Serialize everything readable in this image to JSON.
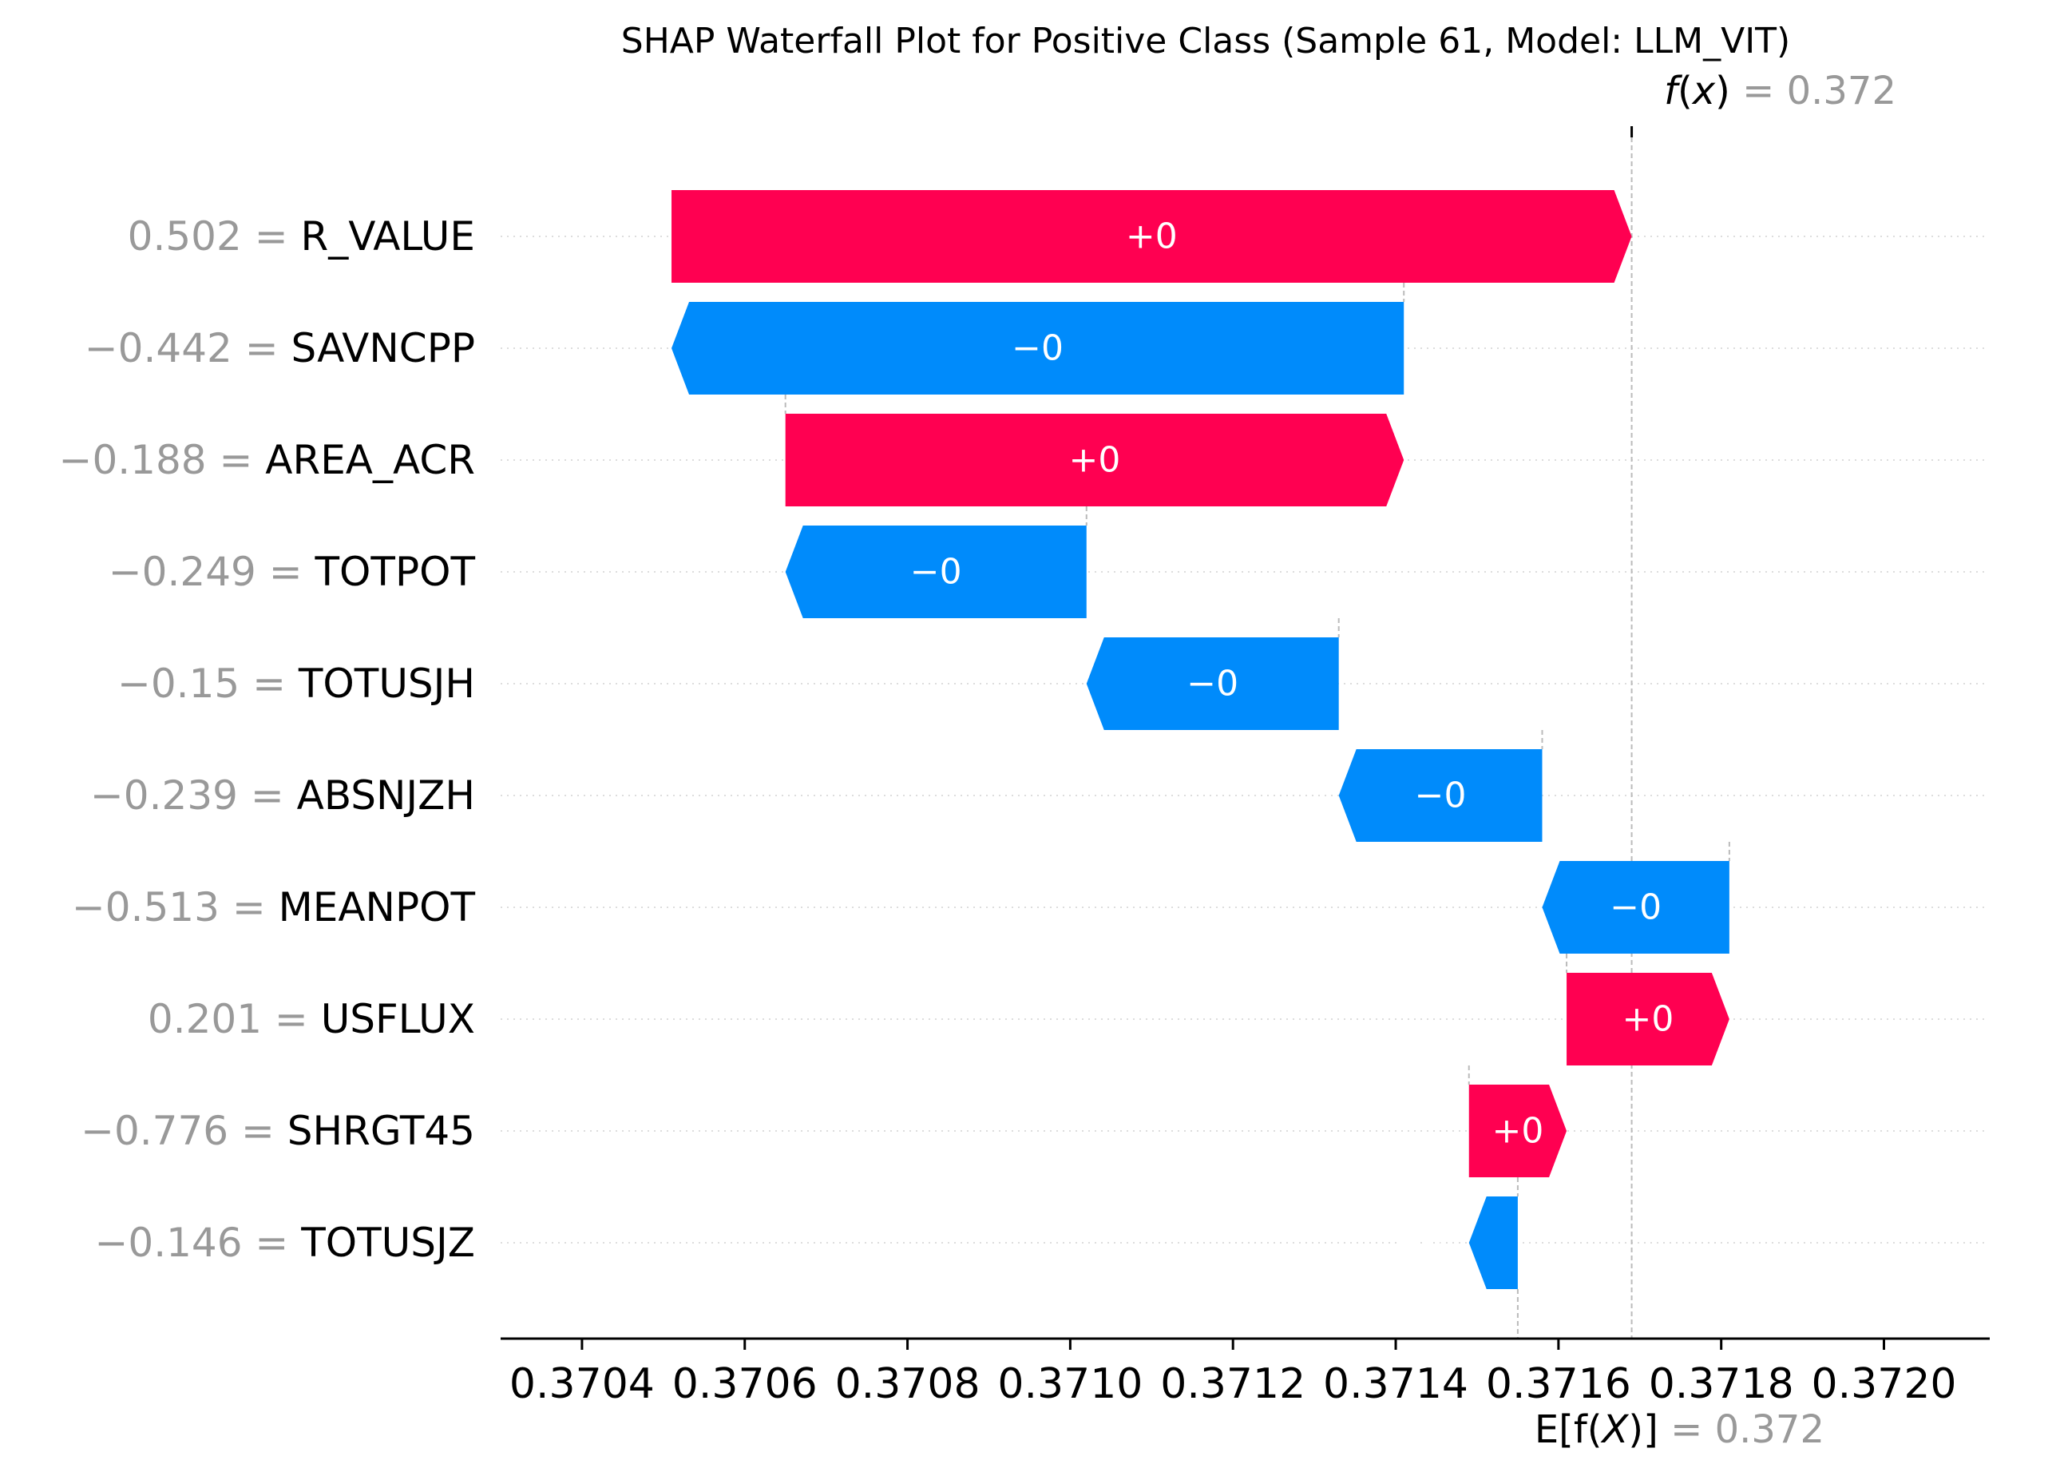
{
  "chart_data": {
    "type": "waterfall",
    "title": "SHAP Waterfall Plot for Positive Class (Sample 61, Model: LLM_VIT)",
    "fx_label_fn": "f",
    "fx_label_arg": "x",
    "fx_value_text": "= 0.372",
    "fx_value": 0.37169,
    "efx_label_fn": "E[f(",
    "efx_label_arg": "X",
    "efx_label_close": ")]",
    "efx_value_text": "= 0.372",
    "base_value": 0.37155,
    "xlim": [
      0.3703,
      0.37213
    ],
    "xticks": [
      {
        "value": 0.3704,
        "label": "0.3704"
      },
      {
        "value": 0.3706,
        "label": "0.3706"
      },
      {
        "value": 0.3708,
        "label": "0.3708"
      },
      {
        "value": 0.371,
        "label": "0.3710"
      },
      {
        "value": 0.3712,
        "label": "0.3712"
      },
      {
        "value": 0.3714,
        "label": "0.3714"
      },
      {
        "value": 0.3716,
        "label": "0.3716"
      },
      {
        "value": 0.3718,
        "label": "0.3718"
      },
      {
        "value": 0.372,
        "label": "0.3720"
      }
    ],
    "features": [
      {
        "value_text": "0.502 =",
        "name": "R_VALUE",
        "start": 0.37051,
        "end": 0.37169,
        "sign": "pos",
        "label": "+0"
      },
      {
        "value_text": "−0.442 =",
        "name": "SAVNCPP",
        "start": 0.37141,
        "end": 0.37051,
        "sign": "neg",
        "label": "−0"
      },
      {
        "value_text": "−0.188 =",
        "name": "AREA_ACR",
        "start": 0.37065,
        "end": 0.37141,
        "sign": "pos",
        "label": "+0"
      },
      {
        "value_text": "−0.249 =",
        "name": "TOTPOT",
        "start": 0.37102,
        "end": 0.37065,
        "sign": "neg",
        "label": "−0"
      },
      {
        "value_text": "−0.15 =",
        "name": "TOTUSJH",
        "start": 0.37133,
        "end": 0.37102,
        "sign": "neg",
        "label": "−0"
      },
      {
        "value_text": "−0.239 =",
        "name": "ABSNJZH",
        "start": 0.37158,
        "end": 0.37133,
        "sign": "neg",
        "label": "−0"
      },
      {
        "value_text": "−0.513 =",
        "name": "MEANPOT",
        "start": 0.37181,
        "end": 0.37158,
        "sign": "neg",
        "label": "−0"
      },
      {
        "value_text": "0.201 =",
        "name": "USFLUX",
        "start": 0.37161,
        "end": 0.37181,
        "sign": "pos",
        "label": "+0"
      },
      {
        "value_text": "−0.776 =",
        "name": "SHRGT45",
        "start": 0.37149,
        "end": 0.37161,
        "sign": "pos",
        "label": "+0"
      },
      {
        "value_text": "−0.146 =",
        "name": "TOTUSJZ",
        "start": 0.37155,
        "end": 0.37149,
        "sign": "neg",
        "label": "−0"
      }
    ],
    "colors": {
      "pos": "#ff0051",
      "neg": "#008bfb"
    }
  }
}
